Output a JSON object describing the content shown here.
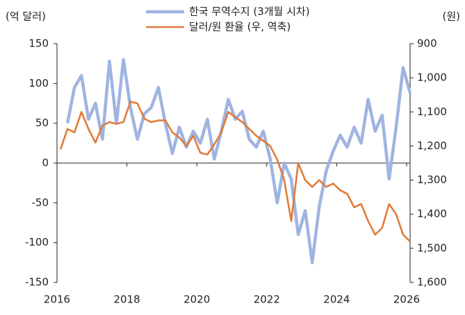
{
  "chart_data": {
    "type": "line",
    "y_label": "(억 달러)",
    "y2_label": "(원)",
    "x": [
      2016.1,
      2016.3,
      2016.5,
      2016.7,
      2016.9,
      2017.1,
      2017.3,
      2017.5,
      2017.7,
      2017.9,
      2018.1,
      2018.3,
      2018.5,
      2018.7,
      2018.9,
      2019.1,
      2019.3,
      2019.5,
      2019.7,
      2019.9,
      2020.1,
      2020.3,
      2020.5,
      2020.7,
      2020.9,
      2021.1,
      2021.3,
      2021.5,
      2021.7,
      2021.9,
      2022.1,
      2022.3,
      2022.5,
      2022.7,
      2022.9,
      2023.1,
      2023.3,
      2023.5,
      2023.7,
      2023.9,
      2024.1,
      2024.3,
      2024.5,
      2024.7,
      2024.9,
      2025.1,
      2025.3,
      2025.5,
      2025.7,
      2025.9,
      2026.1
    ],
    "series": [
      {
        "name": "한국 무역수지 (3개월 시차)",
        "color": "#9fb4e0",
        "values": [
          null,
          50,
          95,
          110,
          55,
          75,
          30,
          128,
          50,
          130,
          70,
          30,
          62,
          70,
          95,
          50,
          12,
          45,
          20,
          40,
          25,
          55,
          5,
          40,
          80,
          55,
          65,
          30,
          20,
          40,
          5,
          -50,
          0,
          -20,
          -90,
          -60,
          -125,
          -55,
          -10,
          15,
          35,
          20,
          45,
          25,
          80,
          40,
          60,
          -20,
          45,
          120,
          88
        ]
      },
      {
        "name": "달러/원 환율 (우, 역축)",
        "color": "#e07b39",
        "axis": "y2",
        "values": [
          1210,
          1150,
          1160,
          1100,
          1150,
          1190,
          1140,
          1130,
          1135,
          1130,
          1070,
          1075,
          1120,
          1130,
          1125,
          1125,
          1160,
          1175,
          1200,
          1170,
          1220,
          1225,
          1195,
          1160,
          1100,
          1115,
          1130,
          1150,
          1170,
          1185,
          1200,
          1240,
          1300,
          1420,
          1250,
          1300,
          1320,
          1300,
          1320,
          1310,
          1330,
          1340,
          1380,
          1370,
          1420,
          1460,
          1440,
          1370,
          1400,
          1460,
          1480
        ]
      }
    ],
    "xlim": [
      2016,
      2026.1
    ],
    "xticks": [
      2016,
      2018,
      2020,
      2022,
      2024,
      2026
    ],
    "ylim": [
      -150,
      150
    ],
    "yticks": [
      -150,
      -100,
      -50,
      0,
      50,
      100,
      150
    ],
    "y2lim": [
      1600,
      900
    ],
    "y2inverted": true,
    "y2ticks": [
      900,
      {
        "value": 1000,
        "label": "1,000"
      },
      {
        "value": 1100,
        "label": "1,100"
      },
      {
        "value": 1200,
        "label": "1,200"
      },
      {
        "value": 1300,
        "label": "1,300"
      },
      {
        "value": 1400,
        "label": "1,400"
      },
      {
        "value": 1500,
        "label": "1,500"
      },
      {
        "value": 1600,
        "label": "1,600"
      }
    ],
    "legend": "top"
  }
}
